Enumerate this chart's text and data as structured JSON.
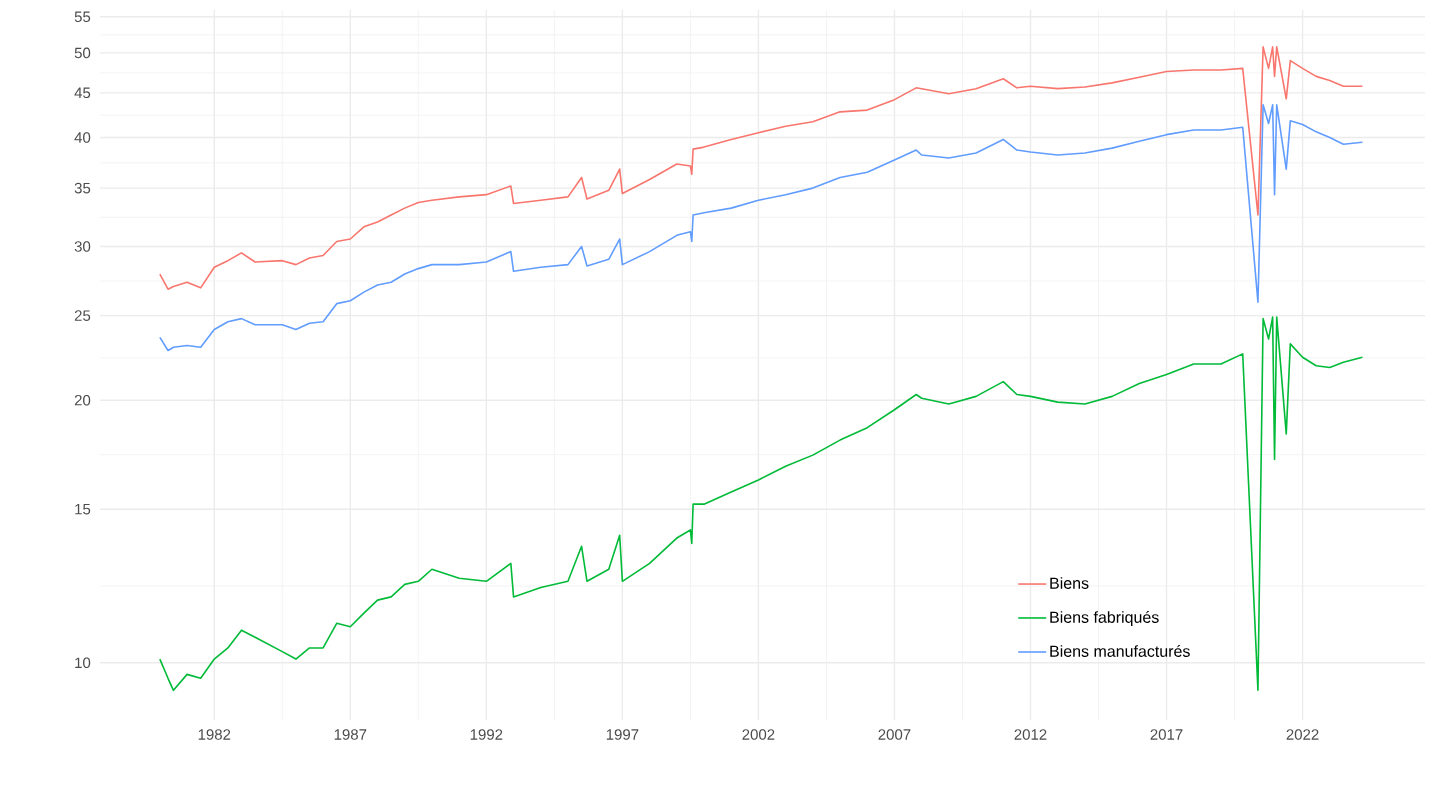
{
  "chart_data": {
    "type": "line",
    "x": [
      1980.0,
      1980.3,
      1980.5,
      1981.0,
      1981.5,
      1982.0,
      1982.5,
      1983.0,
      1983.5,
      1984.5,
      1985.0,
      1985.5,
      1986.0,
      1986.5,
      1987.0,
      1987.5,
      1988.0,
      1988.5,
      1989.0,
      1989.5,
      1990.0,
      1991.0,
      1992.0,
      1992.9,
      1993.0,
      1994.0,
      1995.0,
      1995.5,
      1995.7,
      1996.5,
      1996.9,
      1997.0,
      1998.0,
      1999.0,
      1999.5,
      1999.55,
      1999.6,
      2000.0,
      2001.0,
      2002.0,
      2003.0,
      2004.0,
      2005.0,
      2006.0,
      2007.0,
      2007.8,
      2008.0,
      2009.0,
      2010.0,
      2011.0,
      2011.5,
      2012.0,
      2013.0,
      2014.0,
      2015.0,
      2016.0,
      2017.0,
      2018.0,
      2019.0,
      2019.8,
      2020.36,
      2020.55,
      2020.75,
      2020.9,
      2020.97,
      2021.05,
      2021.4,
      2021.55,
      2022.0,
      2022.5,
      2023.0,
      2023.5,
      2024.2
    ],
    "series": [
      {
        "name": "Biens",
        "color": "#f8766d",
        "values": [
          27.9,
          26.8,
          27.0,
          27.3,
          26.9,
          28.4,
          28.9,
          29.5,
          28.8,
          28.9,
          28.6,
          29.1,
          29.3,
          30.4,
          30.6,
          31.6,
          32.0,
          32.6,
          33.2,
          33.7,
          33.9,
          34.2,
          34.4,
          35.2,
          33.6,
          33.9,
          34.2,
          36.0,
          34.0,
          34.8,
          36.8,
          34.5,
          35.8,
          37.3,
          37.1,
          36.3,
          38.8,
          39.0,
          39.8,
          40.5,
          41.2,
          41.7,
          42.8,
          43.0,
          44.2,
          45.6,
          45.5,
          44.9,
          45.5,
          46.7,
          45.6,
          45.8,
          45.5,
          45.7,
          46.2,
          46.9,
          47.6,
          47.8,
          47.8,
          48.0,
          32.6,
          50.8,
          48.0,
          50.8,
          47.0,
          50.8,
          44.3,
          49.0,
          48.0,
          47.0,
          46.5,
          45.8,
          45.8
        ]
      },
      {
        "name": "Biens fabriqués",
        "color": "#00ba38",
        "values": [
          10.1,
          9.6,
          9.3,
          9.7,
          9.6,
          10.1,
          10.4,
          10.9,
          10.7,
          10.3,
          10.1,
          10.4,
          10.4,
          11.1,
          11.0,
          11.4,
          11.8,
          11.9,
          12.3,
          12.4,
          12.8,
          12.5,
          12.4,
          13.0,
          11.9,
          12.2,
          12.4,
          13.6,
          12.4,
          12.8,
          14.0,
          12.4,
          13.0,
          13.9,
          14.2,
          13.7,
          15.2,
          15.2,
          15.7,
          16.2,
          16.8,
          17.3,
          18.0,
          18.6,
          19.5,
          20.3,
          20.1,
          19.8,
          20.2,
          21.0,
          20.3,
          20.2,
          19.9,
          19.8,
          20.2,
          20.9,
          21.4,
          22.0,
          22.0,
          22.6,
          9.3,
          24.8,
          23.5,
          24.9,
          17.1,
          24.9,
          18.3,
          23.2,
          22.4,
          21.9,
          21.8,
          22.1,
          22.4
        ]
      },
      {
        "name": "Biens manufacturés",
        "color": "#619cff",
        "values": [
          23.6,
          22.8,
          23.0,
          23.1,
          23.0,
          24.1,
          24.6,
          24.8,
          24.4,
          24.4,
          24.1,
          24.5,
          24.6,
          25.8,
          26.0,
          26.6,
          27.1,
          27.3,
          27.9,
          28.3,
          28.6,
          28.6,
          28.8,
          29.6,
          28.1,
          28.4,
          28.6,
          30.0,
          28.5,
          29.0,
          30.6,
          28.6,
          29.6,
          30.9,
          31.2,
          30.4,
          32.6,
          32.8,
          33.2,
          33.9,
          34.4,
          35.0,
          36.0,
          36.5,
          37.7,
          38.7,
          38.2,
          37.9,
          38.4,
          39.8,
          38.7,
          38.5,
          38.2,
          38.4,
          38.9,
          39.6,
          40.3,
          40.8,
          40.8,
          41.1,
          25.9,
          43.6,
          41.5,
          43.6,
          34.4,
          43.6,
          36.8,
          41.8,
          41.4,
          40.6,
          40.0,
          39.3,
          39.5
        ]
      }
    ],
    "xlim": [
      1977.8,
      2026.5
    ],
    "ylim": [
      8.6,
      56
    ],
    "xticks": [
      1982,
      1987,
      1992,
      1997,
      2002,
      2007,
      2012,
      2017,
      2022
    ],
    "yticks": [
      10,
      15,
      20,
      25,
      30,
      35,
      40,
      45,
      50,
      55
    ],
    "log": "y",
    "grid": true,
    "legend": "bottom right",
    "marker": "none",
    "line_style": "solid"
  }
}
